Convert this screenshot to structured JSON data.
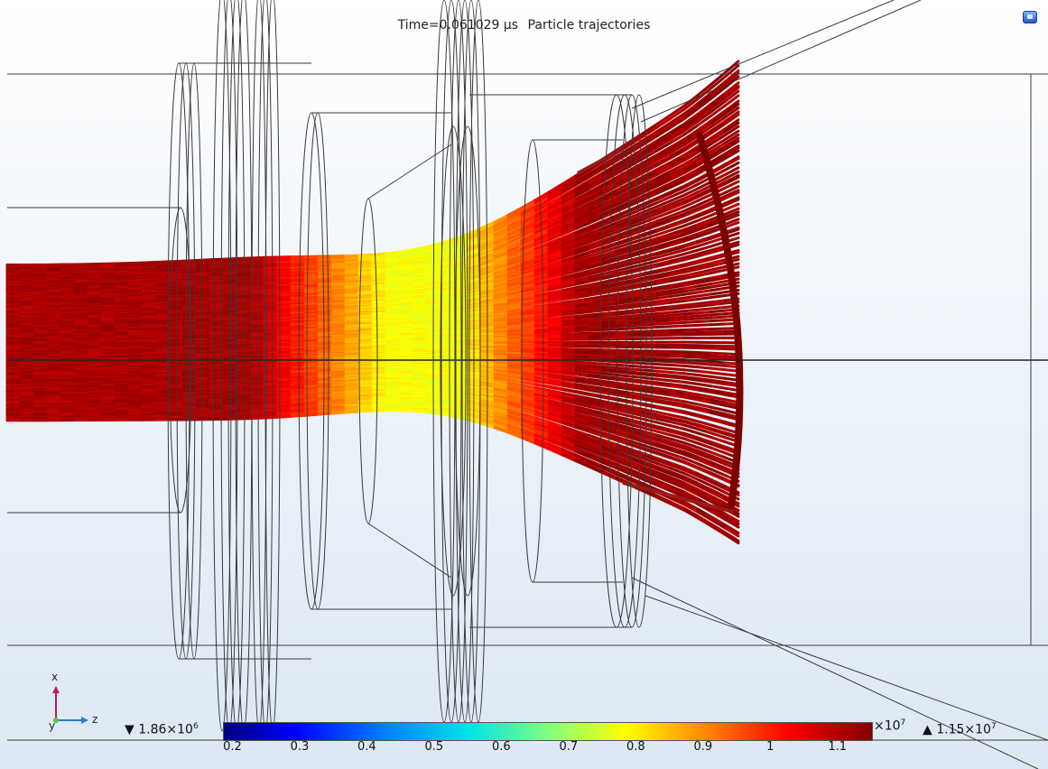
{
  "header": {
    "time_label": "Time=0.061029 µs",
    "plot_title": "Particle trajectories"
  },
  "triad": {
    "x_label": "x",
    "y_label": "y",
    "z_label": "z"
  },
  "colorbar": {
    "min_label": "▼ 1.86×10",
    "min_exp": "6",
    "max_label": "▲ 1.15×10",
    "max_exp": "7",
    "scale_label": "×10",
    "scale_exp": "7",
    "ticks": [
      "0.2",
      "0.3",
      "0.4",
      "0.5",
      "0.6",
      "0.7",
      "0.8",
      "0.9",
      "1",
      "1.1"
    ],
    "colors": [
      "#00007f",
      "#0000ff",
      "#0080ff",
      "#00e5e5",
      "#7fff7f",
      "#ffff00",
      "#ff8000",
      "#ff0000",
      "#800000"
    ]
  },
  "icons": {
    "corner": "plot-settings-icon"
  }
}
